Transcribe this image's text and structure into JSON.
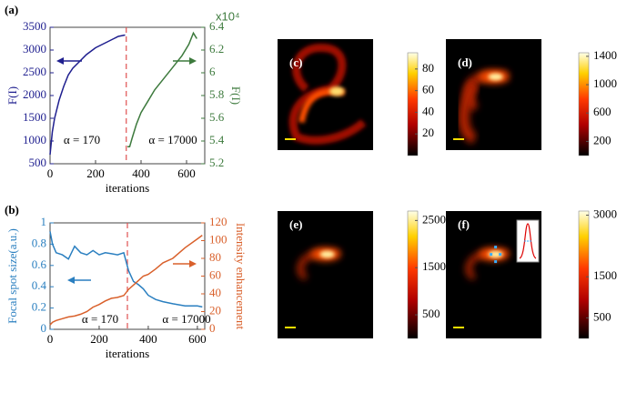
{
  "chart_data": [
    {
      "type": "line",
      "panel_label": "(a)",
      "x_label": "iterations",
      "y_label": "F(I)",
      "y2_label": "F(I)",
      "y2_scale_label": "x10⁴",
      "xlim": [
        0,
        680
      ],
      "xticks": [
        0,
        200,
        400,
        600
      ],
      "ylim": [
        500,
        3500
      ],
      "yticks": [
        500,
        1000,
        1500,
        2000,
        2500,
        3000,
        3500
      ],
      "y2lim": [
        5.2,
        6.4
      ],
      "y2ticks": [
        5.2,
        5.4,
        5.6,
        5.8,
        6,
        6.2,
        6.4
      ],
      "switch_x": 335,
      "annotations": [
        "α = 170",
        "α = 17000"
      ],
      "series": [
        {
          "color": "#1f1f8f",
          "x": [
            0,
            10,
            20,
            40,
            60,
            80,
            100,
            130,
            160,
            200,
            240,
            280,
            300,
            330
          ],
          "values": [
            700,
            1200,
            1500,
            1900,
            2200,
            2450,
            2600,
            2750,
            2900,
            3050,
            3150,
            3250,
            3300,
            3330
          ]
        },
        {
          "color": "#3d7a3d",
          "axis": "y2",
          "x": [
            340,
            350,
            360,
            380,
            400,
            430,
            460,
            500,
            540,
            580,
            610,
            630,
            645
          ],
          "values": [
            5.35,
            5.35,
            5.42,
            5.55,
            5.65,
            5.75,
            5.85,
            5.95,
            6.05,
            6.15,
            6.25,
            6.35,
            6.3
          ]
        }
      ]
    },
    {
      "type": "line",
      "panel_label": "(b)",
      "x_label": "iterations",
      "y_label": "Focal spot size(a.u.)",
      "y2_label": "Intensity enhancement",
      "xlim": [
        0,
        630
      ],
      "xticks": [
        0,
        200,
        400,
        600
      ],
      "ylim": [
        0,
        1
      ],
      "yticks": [
        0,
        0.2,
        0.4,
        0.6,
        0.8,
        1
      ],
      "y2lim": [
        0,
        120
      ],
      "y2ticks": [
        0,
        20,
        40,
        60,
        80,
        100,
        120
      ],
      "switch_x": 315,
      "annotations": [
        "α = 170",
        "α = 17000"
      ],
      "series": [
        {
          "color": "#2a7fc0",
          "x": [
            0,
            10,
            25,
            50,
            75,
            100,
            125,
            150,
            175,
            200,
            225,
            250,
            275,
            300,
            320,
            340,
            360,
            380,
            400,
            430,
            460,
            500,
            550,
            600,
            620
          ],
          "values": [
            0.92,
            0.8,
            0.72,
            0.7,
            0.66,
            0.78,
            0.72,
            0.7,
            0.74,
            0.7,
            0.72,
            0.71,
            0.7,
            0.72,
            0.55,
            0.45,
            0.42,
            0.38,
            0.32,
            0.28,
            0.26,
            0.24,
            0.22,
            0.22,
            0.21
          ]
        },
        {
          "color": "#d9602b",
          "axis": "y2",
          "x": [
            0,
            10,
            25,
            50,
            75,
            100,
            125,
            150,
            175,
            200,
            225,
            250,
            275,
            300,
            320,
            340,
            360,
            380,
            400,
            430,
            460,
            500,
            550,
            600,
            620
          ],
          "values": [
            5,
            8,
            10,
            12,
            14,
            15,
            17,
            20,
            25,
            28,
            32,
            35,
            36,
            38,
            45,
            50,
            55,
            60,
            62,
            68,
            75,
            80,
            92,
            102,
            106
          ]
        }
      ]
    },
    {
      "type": "heatmap",
      "panel_label": "(c)",
      "colormap": "hot",
      "clim": [
        0,
        95
      ],
      "cticks": [
        20,
        40,
        60,
        80
      ]
    },
    {
      "type": "heatmap",
      "panel_label": "(d)",
      "colormap": "hot",
      "clim": [
        0,
        1450
      ],
      "cticks": [
        200,
        600,
        1000,
        1400
      ]
    },
    {
      "type": "heatmap",
      "panel_label": "(e)",
      "colormap": "hot",
      "clim": [
        0,
        2700
      ],
      "cticks": [
        500,
        1500,
        2500
      ]
    },
    {
      "type": "heatmap",
      "panel_label": "(f)",
      "colormap": "hot",
      "clim": [
        0,
        3100
      ],
      "cticks": [
        500,
        1500,
        3000
      ]
    }
  ]
}
